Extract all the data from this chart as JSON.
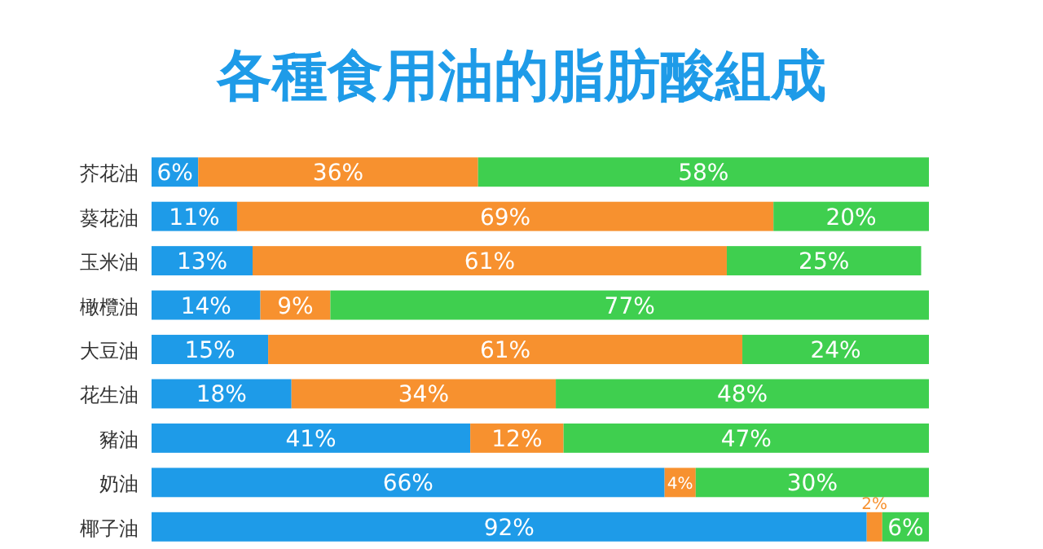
{
  "chart_data": {
    "type": "bar",
    "orientation": "horizontal",
    "stacked": true,
    "title": "各種食用油的脂肪酸組成",
    "categories": [
      "芥花油",
      "葵花油",
      "玉米油",
      "橄欖油",
      "大豆油",
      "花生油",
      "豬油",
      "奶油",
      "椰子油"
    ],
    "xlim": [
      0,
      100
    ],
    "tick_labels": "y",
    "series": [
      {
        "color": "#1e9be8",
        "values": [
          6,
          11,
          13,
          14,
          15,
          18,
          41,
          66,
          92
        ],
        "value_labels": [
          "6%",
          "11%",
          "13%",
          "14%",
          "15%",
          "18%",
          "41%",
          "66%",
          "92%"
        ]
      },
      {
        "color": "#f7912f",
        "values": [
          36,
          69,
          61,
          9,
          61,
          34,
          12,
          4,
          2
        ],
        "value_labels": [
          "36%",
          "69%",
          "61%",
          "9%",
          "61%",
          "34%",
          "12%",
          "4%",
          "2%"
        ]
      },
      {
        "color": "#3fcf4f",
        "values": [
          58,
          20,
          25,
          77,
          24,
          48,
          47,
          30,
          6
        ],
        "value_labels": [
          "58%",
          "20%",
          "25%",
          "77%",
          "24%",
          "48%",
          "47%",
          "30%",
          "6%"
        ]
      }
    ]
  }
}
